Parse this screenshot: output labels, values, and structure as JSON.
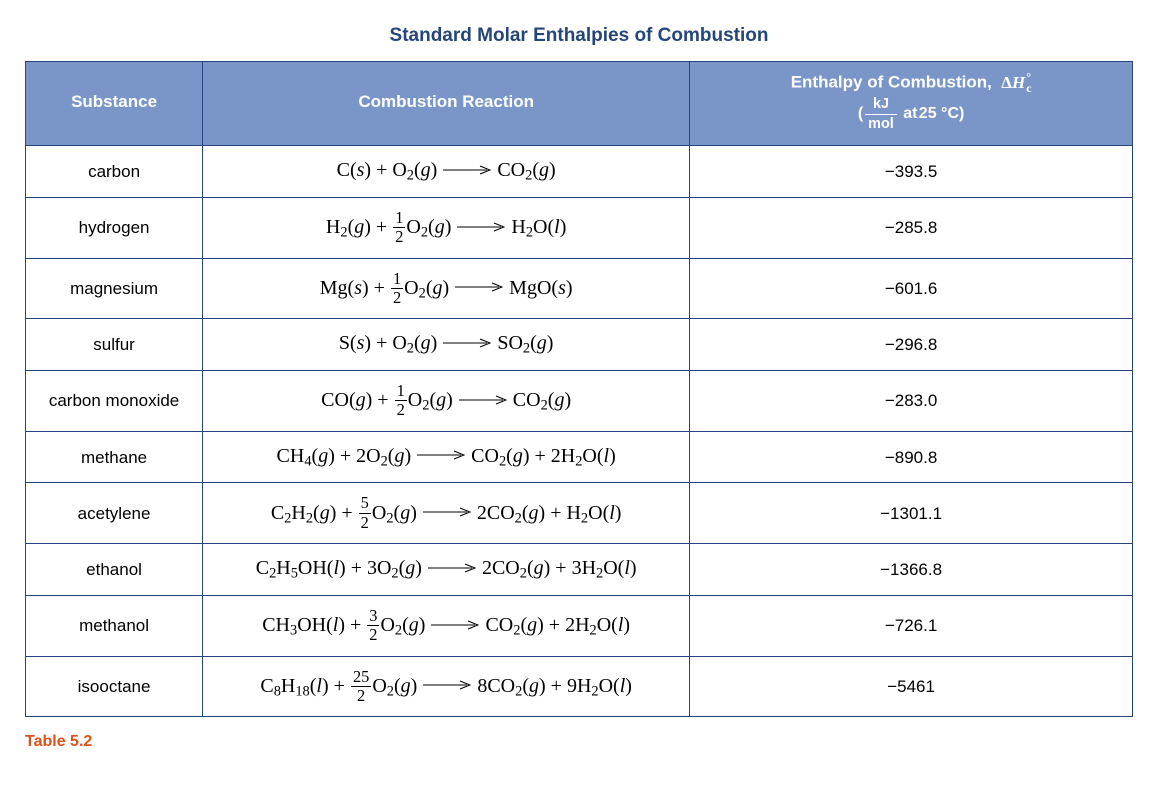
{
  "title": "Standard Molar Enthalpies of Combustion",
  "caption": "Table 5.2",
  "colors": {
    "header_bg": "#7a96c8",
    "header_text": "#ffffff",
    "border": "#25467a",
    "title_text": "#25467a",
    "caption_text": "#d9531e",
    "body_bg": "#ffffff"
  },
  "columns": {
    "c1": "Substance",
    "c2": "Combustion Reaction",
    "c3_main": "Enthalpy of Combustion,",
    "c3_symbol": "ΔH°_c",
    "c3_unit_num": "kJ",
    "c3_unit_den": "mol",
    "c3_cond_prefix": "at",
    "c3_cond_temp": "25 °C"
  },
  "rows": [
    {
      "substance": "carbon",
      "value": "−393.5",
      "reaction": {
        "lhs": [
          {
            "t": "sp",
            "base": "C",
            "state": "s"
          },
          {
            "t": "plus"
          },
          {
            "t": "sp",
            "base": "O",
            "sub": "2",
            "state": "g"
          }
        ],
        "rhs": [
          {
            "t": "sp",
            "base": "CO",
            "sub": "2",
            "state": "g"
          }
        ]
      }
    },
    {
      "substance": "hydrogen",
      "value": "−285.8",
      "reaction": {
        "lhs": [
          {
            "t": "sp",
            "base": "H",
            "sub": "2",
            "state": "g"
          },
          {
            "t": "plus"
          },
          {
            "t": "frac",
            "n": "1",
            "d": "2"
          },
          {
            "t": "sp",
            "base": "O",
            "sub": "2",
            "state": "g"
          }
        ],
        "rhs": [
          {
            "t": "sp",
            "base": "H",
            "sub": "2",
            "base2": "O",
            "state": "l"
          }
        ]
      }
    },
    {
      "substance": "magnesium",
      "value": "−601.6",
      "reaction": {
        "lhs": [
          {
            "t": "sp",
            "base": "Mg",
            "state": "s"
          },
          {
            "t": "plus"
          },
          {
            "t": "frac",
            "n": "1",
            "d": "2"
          },
          {
            "t": "sp",
            "base": "O",
            "sub": "2",
            "state": "g"
          }
        ],
        "rhs": [
          {
            "t": "sp",
            "base": "MgO",
            "state": "s"
          }
        ]
      }
    },
    {
      "substance": "sulfur",
      "value": "−296.8",
      "reaction": {
        "lhs": [
          {
            "t": "sp",
            "base": "S",
            "state": "s"
          },
          {
            "t": "plus"
          },
          {
            "t": "sp",
            "base": "O",
            "sub": "2",
            "state": "g"
          }
        ],
        "rhs": [
          {
            "t": "sp",
            "base": "SO",
            "sub": "2",
            "state": "g"
          }
        ]
      }
    },
    {
      "substance": "carbon monoxide",
      "value": "−283.0",
      "reaction": {
        "lhs": [
          {
            "t": "sp",
            "base": "CO",
            "state": "g"
          },
          {
            "t": "plus"
          },
          {
            "t": "frac",
            "n": "1",
            "d": "2"
          },
          {
            "t": "sp",
            "base": "O",
            "sub": "2",
            "state": "g"
          }
        ],
        "rhs": [
          {
            "t": "sp",
            "base": "CO",
            "sub": "2",
            "state": "g"
          }
        ]
      }
    },
    {
      "substance": "methane",
      "value": "−890.8",
      "reaction": {
        "lhs": [
          {
            "t": "sp",
            "base": "CH",
            "sub": "4",
            "state": "g"
          },
          {
            "t": "plus"
          },
          {
            "t": "coef",
            "v": "2"
          },
          {
            "t": "sp",
            "base": "O",
            "sub": "2",
            "state": "g"
          }
        ],
        "rhs": [
          {
            "t": "sp",
            "base": "CO",
            "sub": "2",
            "state": "g"
          },
          {
            "t": "plus"
          },
          {
            "t": "coef",
            "v": "2"
          },
          {
            "t": "sp",
            "base": "H",
            "sub": "2",
            "base2": "O",
            "state": "l"
          }
        ]
      }
    },
    {
      "substance": "acetylene",
      "value": "−1301.1",
      "reaction": {
        "lhs": [
          {
            "t": "sp",
            "base": "C",
            "sub": "2",
            "base2": "H",
            "sub2": "2",
            "state": "g"
          },
          {
            "t": "plus"
          },
          {
            "t": "frac",
            "n": "5",
            "d": "2"
          },
          {
            "t": "sp",
            "base": "O",
            "sub": "2",
            "state": "g"
          }
        ],
        "rhs": [
          {
            "t": "coef",
            "v": "2"
          },
          {
            "t": "sp",
            "base": "CO",
            "sub": "2",
            "state": "g"
          },
          {
            "t": "plus"
          },
          {
            "t": "sp",
            "base": "H",
            "sub": "2",
            "base2": "O",
            "state": "l"
          }
        ]
      }
    },
    {
      "substance": "ethanol",
      "value": "−1366.8",
      "reaction": {
        "lhs": [
          {
            "t": "sp",
            "base": "C",
            "sub": "2",
            "base2": "H",
            "sub2": "5",
            "base3": "OH",
            "state": "l"
          },
          {
            "t": "plus"
          },
          {
            "t": "coef",
            "v": "3"
          },
          {
            "t": "sp",
            "base": "O",
            "sub": "2",
            "state": "g"
          }
        ],
        "rhs": [
          {
            "t": "coef",
            "v": "2"
          },
          {
            "t": "sp",
            "base": "CO",
            "sub": "2",
            "state": "g"
          },
          {
            "t": "plus"
          },
          {
            "t": "coef",
            "v": "3"
          },
          {
            "t": "sp",
            "base": "H",
            "sub": "2",
            "base2": "O",
            "state": "l"
          }
        ]
      }
    },
    {
      "substance": "methanol",
      "value": "−726.1",
      "reaction": {
        "lhs": [
          {
            "t": "sp",
            "base": "CH",
            "sub": "3",
            "base2": "OH",
            "state": "l"
          },
          {
            "t": "plus"
          },
          {
            "t": "frac",
            "n": "3",
            "d": "2"
          },
          {
            "t": "sp",
            "base": "O",
            "sub": "2",
            "state": "g"
          }
        ],
        "rhs": [
          {
            "t": "sp",
            "base": "CO",
            "sub": "2",
            "state": "g"
          },
          {
            "t": "plus"
          },
          {
            "t": "coef",
            "v": "2"
          },
          {
            "t": "sp",
            "base": "H",
            "sub": "2",
            "base2": "O",
            "state": "l"
          }
        ]
      }
    },
    {
      "substance": "isooctane",
      "value": "−5461",
      "reaction": {
        "lhs": [
          {
            "t": "sp",
            "base": "C",
            "sub": "8",
            "base2": "H",
            "sub2": "18",
            "state": "l"
          },
          {
            "t": "plus"
          },
          {
            "t": "frac",
            "n": "25",
            "d": "2"
          },
          {
            "t": "sp",
            "base": "O",
            "sub": "2",
            "state": "g"
          }
        ],
        "rhs": [
          {
            "t": "coef",
            "v": "8"
          },
          {
            "t": "sp",
            "base": "CO",
            "sub": "2",
            "state": "g"
          },
          {
            "t": "plus"
          },
          {
            "t": "coef",
            "v": "9"
          },
          {
            "t": "sp",
            "base": "H",
            "sub": "2",
            "base2": "O",
            "state": "l"
          }
        ]
      }
    }
  ]
}
